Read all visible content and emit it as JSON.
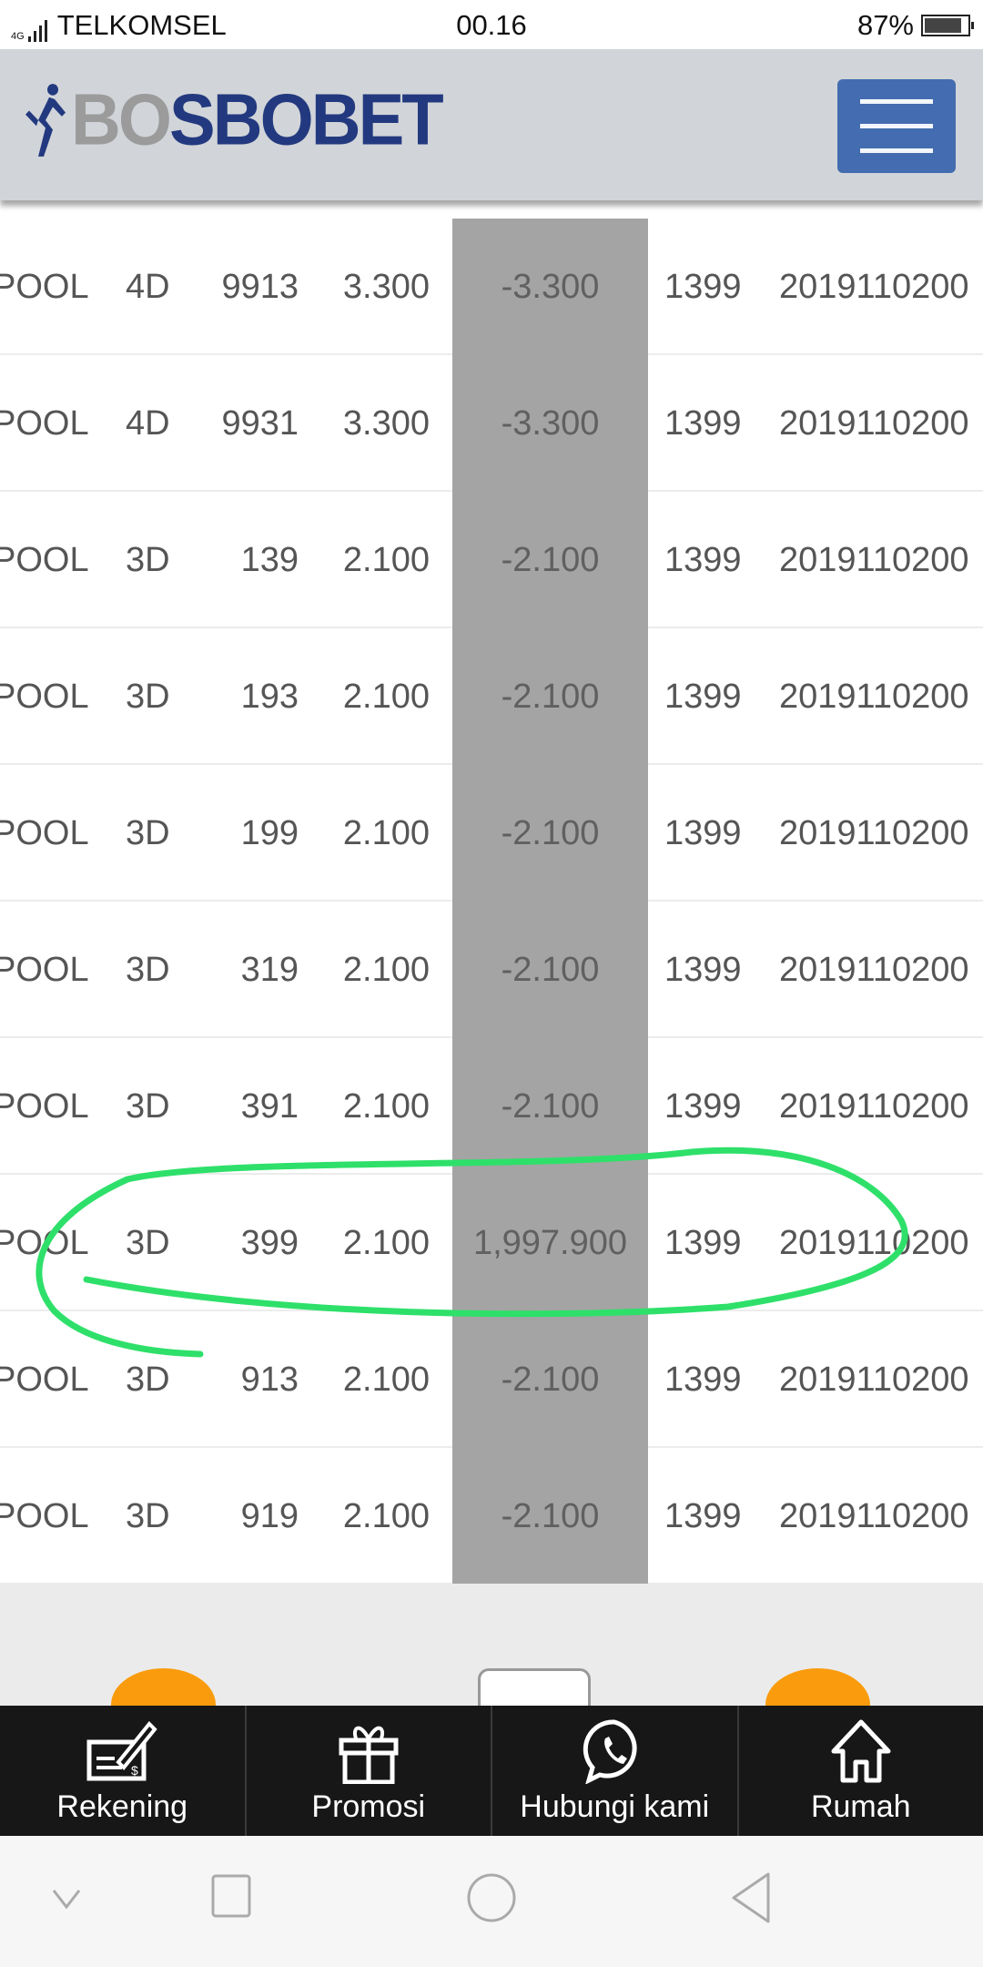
{
  "status_bar": {
    "network": "4G",
    "carrier": "TELKOMSEL",
    "time": "00.16",
    "battery": "87%",
    "battery_level": 0.87
  },
  "header": {
    "logo_part1": "BO",
    "logo_part2": "SBOBET",
    "menu_icon": "hamburger-icon"
  },
  "colors": {
    "header_bg": "#d1d5d9",
    "menu_button": "#436db0",
    "logo_blue": "#23397f",
    "highlight_column": "#a4a4a4",
    "bottom_bar": "#171717",
    "accent_orange": "#f99b0c",
    "annotation_green": "#2ee06a"
  },
  "table": {
    "rows": [
      [
        "POOL",
        "4D",
        "9913",
        "3.300",
        "-3.300",
        "1399",
        "2019110200"
      ],
      [
        "POOL",
        "4D",
        "9931",
        "3.300",
        "-3.300",
        "1399",
        "2019110200"
      ],
      [
        "POOL",
        "3D",
        "139",
        "2.100",
        "-2.100",
        "1399",
        "2019110200"
      ],
      [
        "POOL",
        "3D",
        "193",
        "2.100",
        "-2.100",
        "1399",
        "2019110200"
      ],
      [
        "POOL",
        "3D",
        "199",
        "2.100",
        "-2.100",
        "1399",
        "2019110200"
      ],
      [
        "POOL",
        "3D",
        "319",
        "2.100",
        "-2.100",
        "1399",
        "2019110200"
      ],
      [
        "POOL",
        "3D",
        "391",
        "2.100",
        "-2.100",
        "1399",
        "2019110200"
      ],
      [
        "POOL",
        "3D",
        "399",
        "2.100",
        "1,997.900",
        "1399",
        "2019110200"
      ],
      [
        "POOL",
        "3D",
        "913",
        "2.100",
        "-2.100",
        "1399",
        "2019110200"
      ],
      [
        "POOL",
        "3D",
        "919",
        "2.100",
        "-2.100",
        "1399",
        "2019110200"
      ]
    ]
  },
  "bottom_nav": [
    {
      "label": "Rekening",
      "icon": "check-writing-icon"
    },
    {
      "label": "Promosi",
      "icon": "gift-icon"
    },
    {
      "label": "Hubungi kami",
      "icon": "whatsapp-icon"
    },
    {
      "label": "Rumah",
      "icon": "home-icon"
    }
  ]
}
